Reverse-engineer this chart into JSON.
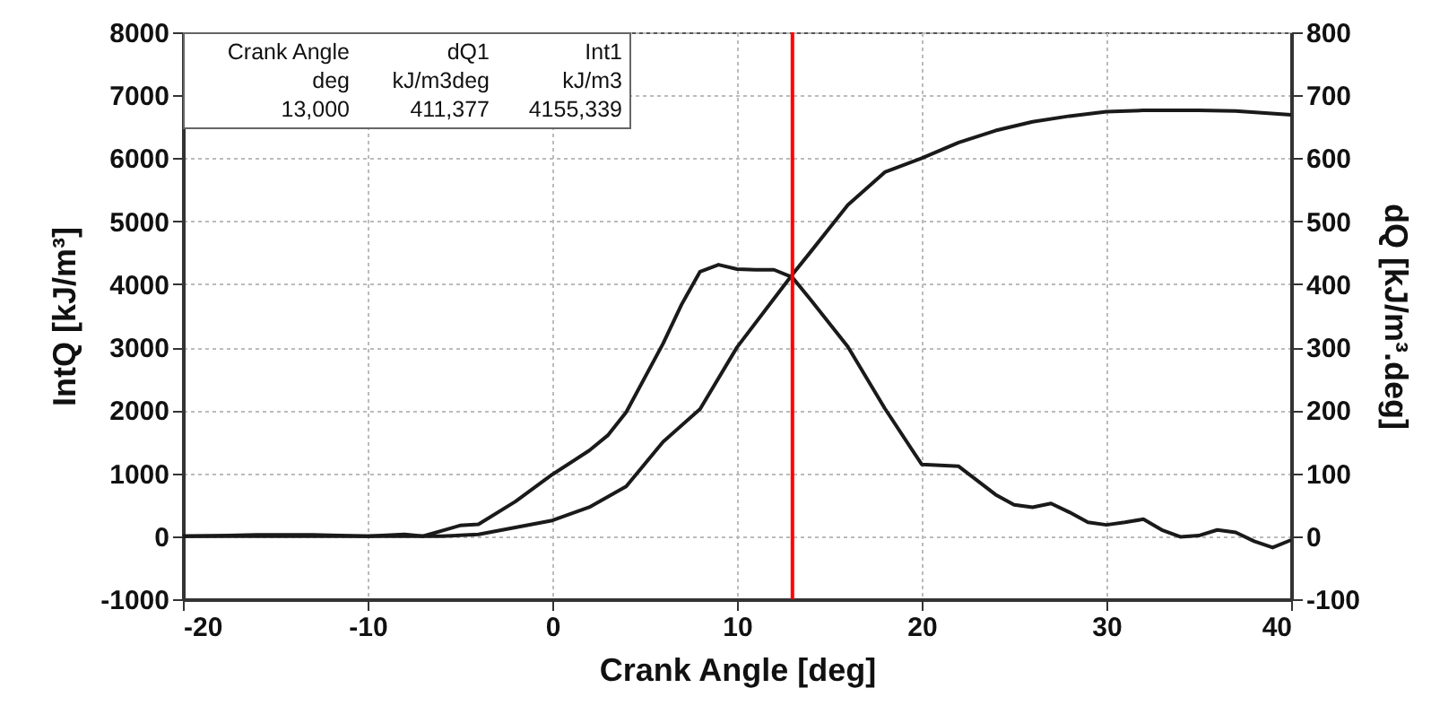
{
  "chart_data": {
    "type": "line",
    "xlabel": "Crank Angle [deg]",
    "ylabel": "IntQ [kJ/m³]",
    "y2label": "dQ [kJ/m³.deg]",
    "xlim": [
      -20,
      40
    ],
    "xticks": [
      -20,
      -10,
      0,
      10,
      20,
      30,
      40
    ],
    "ylim": [
      -1000,
      8000
    ],
    "yticks": [
      -1000,
      0,
      1000,
      2000,
      3000,
      4000,
      5000,
      6000,
      7000,
      8000
    ],
    "y2lim": [
      -100,
      800
    ],
    "y2ticks": [
      -100,
      0,
      100,
      200,
      300,
      400,
      500,
      600,
      700,
      800
    ],
    "grid": true,
    "line_style": "solid",
    "marker": "none",
    "series": [
      {
        "color": "#1a1a1a",
        "x": [
          -20,
          -16,
          -13,
          -10,
          -7,
          -6,
          -4,
          -2,
          0,
          2,
          4,
          6,
          8,
          10,
          12,
          13,
          14,
          16,
          18,
          20,
          22,
          24,
          26,
          28,
          30,
          32,
          35,
          37,
          40
        ],
        "values": [
          0,
          0,
          0,
          0,
          0,
          0,
          30,
          140,
          250,
          460,
          790,
          1500,
          2020,
          3000,
          3770,
          4155,
          4520,
          5260,
          5780,
          6000,
          6250,
          6440,
          6580,
          6670,
          6740,
          6760,
          6760,
          6750,
          6690
        ]
      },
      {
        "color": "#1a1a1a",
        "axis": "y2",
        "x": [
          -20,
          -16,
          -13,
          -10,
          -8,
          -7,
          -5,
          -4,
          -2,
          0,
          2,
          3,
          4,
          6,
          7,
          8,
          9,
          10,
          11,
          12,
          13,
          14,
          16,
          18,
          20,
          22,
          24,
          25,
          26,
          27,
          28,
          29,
          30,
          31,
          32,
          33,
          34,
          35,
          36,
          37,
          38,
          39,
          40
        ],
        "values": [
          0,
          2,
          2,
          0,
          3,
          0,
          17,
          19,
          55,
          98,
          136,
          160,
          197,
          306,
          368,
          420,
          431,
          424,
          423,
          423,
          411,
          375,
          301,
          203,
          114,
          111,
          66,
          50,
          46,
          52,
          38,
          22,
          18,
          22,
          27,
          10,
          -1,
          1,
          10,
          6,
          -8,
          -18,
          -6
        ]
      }
    ],
    "ref_lines": [
      {
        "axis": "x",
        "value": 13,
        "color": "#ff0000"
      }
    ],
    "annotations": [
      "Crank Angle",
      "dQ1",
      "Int1",
      "deg",
      "kJ/m3deg",
      "kJ/m3",
      "13,000",
      "411,377",
      "4155,339"
    ]
  }
}
